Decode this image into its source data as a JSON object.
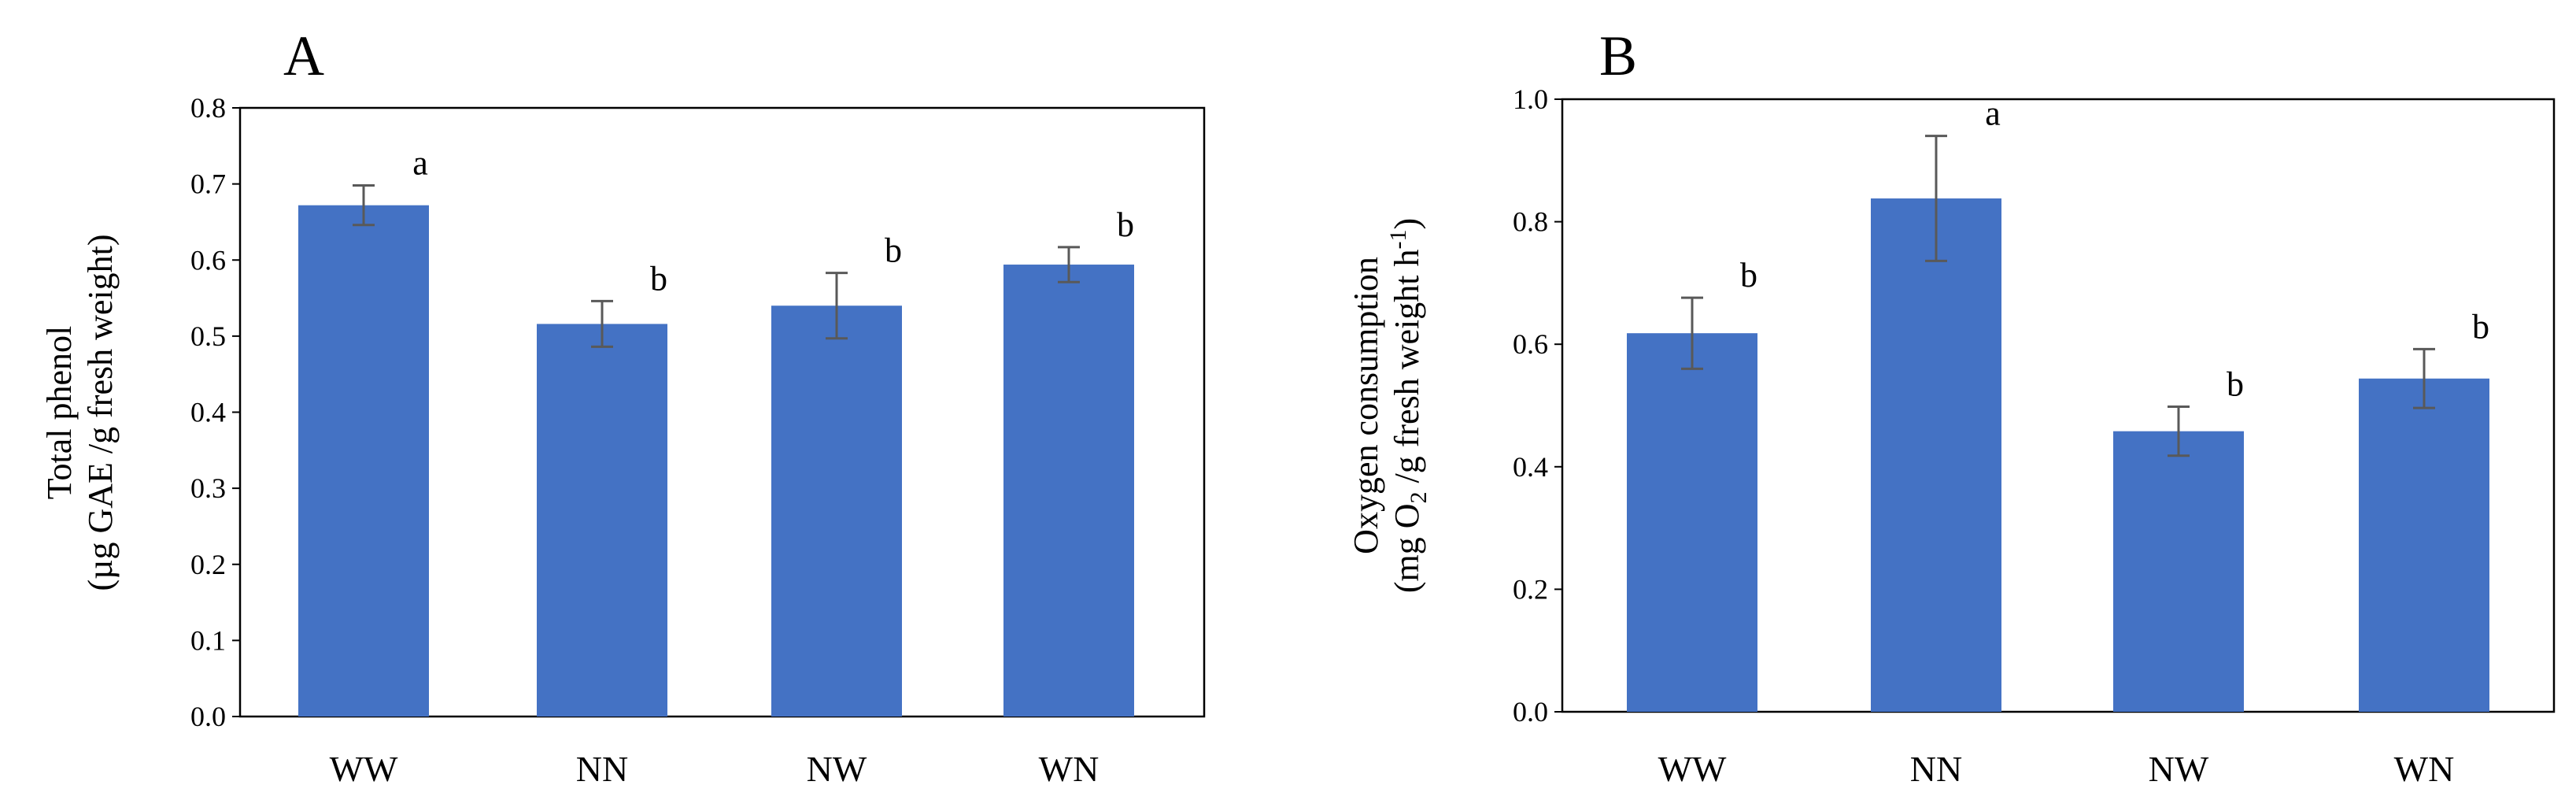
{
  "colors": {
    "bar": "#4472C4",
    "error_bar": "#595959",
    "axis": "#000000"
  },
  "chart_data": [
    {
      "panel": "A",
      "type": "bar",
      "categories": [
        "WW",
        "NN",
        "NW",
        "WN"
      ],
      "values": [
        0.672,
        0.516,
        0.54,
        0.594
      ],
      "error": [
        0.026,
        0.03,
        0.043,
        0.023
      ],
      "significance": [
        "a",
        "b",
        "b",
        "b"
      ],
      "ylabel_line1": "Total phenol",
      "ylabel_line2": "(µg GAE /g fresh weight)",
      "ylim": [
        0,
        0.8
      ],
      "yticks": [
        0,
        0.1,
        0.2,
        0.3,
        0.4,
        0.5,
        0.6,
        0.7,
        0.8
      ],
      "ytick_labels": [
        "0.0",
        "0.1",
        "0.2",
        "0.3",
        "0.4",
        "0.5",
        "0.6",
        "0.7",
        "0.8"
      ],
      "grid": false
    },
    {
      "panel": "B",
      "type": "bar",
      "categories": [
        "WW",
        "NN",
        "NW",
        "WN"
      ],
      "values": [
        0.618,
        0.838,
        0.458,
        0.544
      ],
      "error": [
        0.058,
        0.102,
        0.04,
        0.048
      ],
      "significance": [
        "b",
        "a",
        "b",
        "b"
      ],
      "ylabel_line1": "Oxygen  consumption",
      "ylabel_line2": "(mg O2 /g fresh weight h-1)",
      "ylim": [
        0,
        1.0
      ],
      "yticks": [
        0,
        0.2,
        0.4,
        0.6,
        0.8,
        1.0
      ],
      "ytick_labels": [
        "0.0",
        "0.2",
        "0.4",
        "0.6",
        "0.8",
        "1.0"
      ],
      "grid": false
    }
  ]
}
